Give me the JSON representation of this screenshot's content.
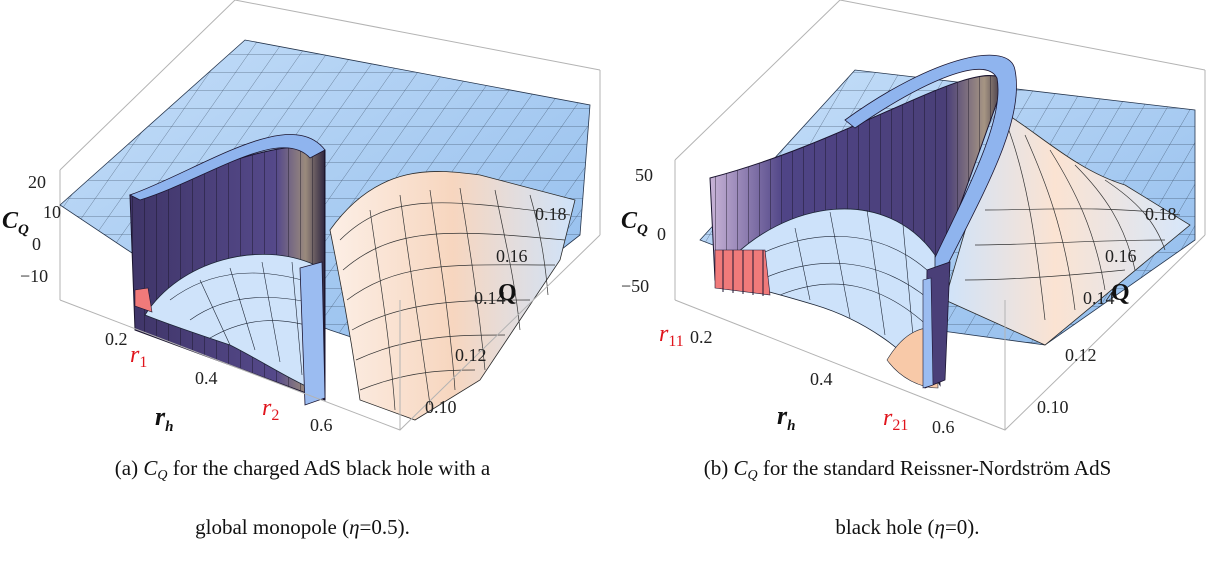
{
  "figures": [
    {
      "id": "a",
      "tick_labels": {
        "z": [
          "20",
          "10",
          "0",
          "−10"
        ],
        "rh": [
          "0.2",
          "0.4",
          "0.6"
        ],
        "q": [
          "0.18",
          "0.16",
          "0.14",
          "0.12",
          "0.10"
        ]
      },
      "axis_labels": {
        "z_main": "C",
        "z_sub": "Q",
        "x_main": "r",
        "x_sub": "h",
        "y": "Q"
      },
      "markers": [
        {
          "main": "r",
          "sub": "1"
        },
        {
          "main": "r",
          "sub": "2"
        }
      ],
      "caption": {
        "prefix": "(a) ",
        "symbol": "C",
        "symbol_sub": "Q",
        "line1_rest": " for the charged AdS black hole with a",
        "line2": "global monopole (",
        "eta": "η",
        "eta_value": "=0.5)."
      }
    },
    {
      "id": "b",
      "tick_labels": {
        "z": [
          "50",
          "0",
          "−50"
        ],
        "rh": [
          "0.2",
          "0.4",
          "0.6"
        ],
        "q": [
          "0.18",
          "0.16",
          "0.14",
          "0.12",
          "0.10"
        ]
      },
      "axis_labels": {
        "z_main": "C",
        "z_sub": "Q",
        "x_main": "r",
        "x_sub": "h",
        "y": "Q"
      },
      "markers": [
        {
          "main": "r",
          "sub": "11"
        },
        {
          "main": "r",
          "sub": "21"
        }
      ],
      "caption": {
        "prefix": "(b) ",
        "symbol": "C",
        "symbol_sub": "Q",
        "line1_rest": " for the standard Reissner-Nordström AdS",
        "line2": "black hole (",
        "eta": "η",
        "eta_value": "=0)."
      }
    }
  ],
  "colors": {
    "surface": "#a9cdf3",
    "surface_light": "#dbeafb",
    "wall": "#4a3f78",
    "wall_edge": "#1b1530",
    "pink": "#f07a7a",
    "peach": "#fbe3d2",
    "marker": "#e0141c",
    "box": "#b0b0b0"
  }
}
